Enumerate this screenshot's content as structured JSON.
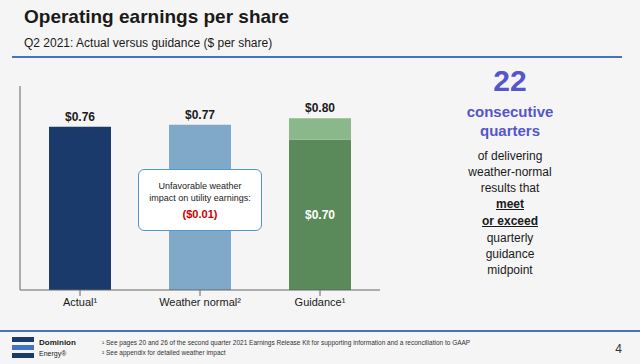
{
  "chart_data": {
    "type": "bar",
    "title": "Operating earnings per share",
    "subtitle": "Q2 2021: Actual versus guidance ($ per share)",
    "categories": [
      "Actual¹",
      "Weather normal²",
      "Guidance¹"
    ],
    "series": [
      {
        "values": [
          0.76,
          0.77,
          0.7
        ],
        "colors": [
          "#1a3a6b",
          "#7fa8c9",
          "#5a8a5a"
        ],
        "value_labels": [
          null,
          null,
          "$0.70"
        ]
      },
      {
        "values": [
          null,
          null,
          0.1
        ],
        "color": "#8ab88a"
      }
    ],
    "totals": [
      0.76,
      0.77,
      0.8
    ],
    "total_labels": [
      "$0.76",
      "$0.77",
      "$0.80"
    ],
    "stacked": true,
    "data_labels": true,
    "ylim": [
      0,
      0.95
    ],
    "grid": false,
    "tick_labels": "x",
    "annotation": {
      "lines": [
        "Unfavorable weather",
        "impact on utility earnings:"
      ],
      "value": "($0.01)",
      "color": "#cc0000"
    },
    "side_panel": {
      "headline": "22",
      "headline_text": [
        "consecutive",
        "quarters"
      ],
      "lines_before": [
        "of delivering",
        "weather-normal",
        "results that"
      ],
      "emphasis": [
        "meet",
        "or exceed"
      ],
      "lines_after": [
        "quarterly",
        "guidance",
        "midpoint"
      ],
      "color": "#5555cc"
    },
    "footnotes": [
      "¹ See pages 20 and 26 of the second quarter 2021 Earnings Release Kit for supporting information and a reconciliation to GAAP",
      "² See appendix for detailed weather impact"
    ],
    "page_number": "4",
    "logo": [
      "Dominion",
      "Energy®"
    ]
  }
}
